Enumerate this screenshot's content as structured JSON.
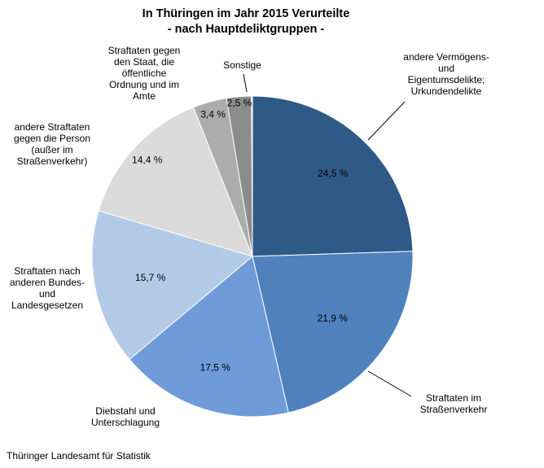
{
  "title": {
    "line1": "In Thüringen im Jahr 2015 Verurteilte",
    "line2": "- nach Hauptdeliktgruppen -"
  },
  "source": "Thüringer Landesamt für Statistik",
  "chart_data": {
    "type": "pie",
    "title": "In Thüringen im Jahr 2015 Verurteilte - nach Hauptdeliktgruppen -",
    "unit": "%",
    "start_angle_deg": 0,
    "direction": "clockwise",
    "legend_position": "around-pie",
    "slices": [
      {
        "label": "andere Vermögens- und Eigentumsdelikte; Urkundendelikte",
        "value": 24.5,
        "percent_label": "24,5 %",
        "color": "#2F5A87"
      },
      {
        "label": "Straftaten im Straßenverkehr",
        "value": 21.9,
        "percent_label": "21,9 %",
        "color": "#4F81BD"
      },
      {
        "label": "Diebstahl und Unterschlagung",
        "value": 17.5,
        "percent_label": "17,5 %",
        "color": "#6F9BD9"
      },
      {
        "label": "Straftaten nach anderen Bundes- und Landesgesetzen",
        "value": 15.7,
        "percent_label": "15,7 %",
        "color": "#B3CAE7"
      },
      {
        "label": "andere Straftaten gegen die Person (außer im Straßenverkehr)",
        "value": 14.4,
        "percent_label": "14,4 %",
        "color": "#DBDBDB"
      },
      {
        "label": "Straftaten gegen den Staat, die öffentliche Ordnung und im Amte",
        "value": 3.4,
        "percent_label": "3,4 %",
        "color": "#ACACAC"
      },
      {
        "label": "Sonstige",
        "value": 2.5,
        "percent_label": "2,5 %",
        "color": "#8C8C8C"
      }
    ]
  }
}
